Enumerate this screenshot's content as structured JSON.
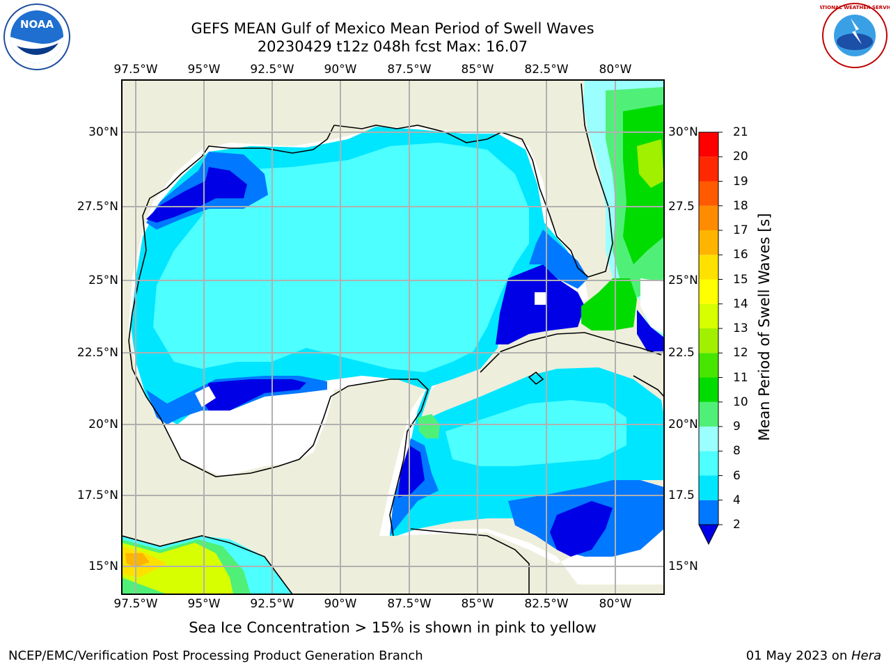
{
  "title": {
    "line1": "GEFS MEAN Gulf of Mexico Mean Period of Swell Waves",
    "line2": "20230429 t12z 048h fcst   Max: 16.07"
  },
  "lon_labels": [
    "97.5°W",
    "95°W",
    "92.5°W",
    "90°W",
    "87.5°W",
    "85°W",
    "82.5°W",
    "80°W"
  ],
  "lat_labels": [
    "30°N",
    "27.5°N",
    "25°N",
    "22.5°N",
    "20°N",
    "17.5°N",
    "15°N"
  ],
  "lat_labels_right": [
    "30°N",
    "27.5",
    "25°N",
    "22.5",
    "20°N",
    "17.5",
    "15°N"
  ],
  "colorbar": {
    "label": "Mean Period of Swell Waves [s]",
    "ticks": [
      "2",
      "4",
      "6",
      "8",
      "9",
      "10",
      "11",
      "12",
      "13",
      "14",
      "15",
      "16",
      "17",
      "18",
      "19",
      "20",
      "21"
    ],
    "colors": [
      "#0000e6",
      "#0078ff",
      "#00e6ff",
      "#4dffff",
      "#9bffff",
      "#50f078",
      "#00dc00",
      "#46e600",
      "#a0f000",
      "#d7ff00",
      "#ffff00",
      "#ffe100",
      "#ffb400",
      "#ff8c00",
      "#ff5a00",
      "#ff2800",
      "#ff0000"
    ]
  },
  "note": "Sea Ice Concentration > 15% is shown in pink to yellow",
  "footer": {
    "left": "NCEP/EMC/Verification Post Processing Product Generation Branch",
    "date": "01 May 2023 on ",
    "host": "Hera"
  },
  "logos": {
    "left": "NOAA",
    "right": "NATIONAL WEATHER SERVICE"
  },
  "colors": {
    "land": "#eeeedc",
    "grid": "#b0b0b0",
    "coast": "#000000"
  }
}
